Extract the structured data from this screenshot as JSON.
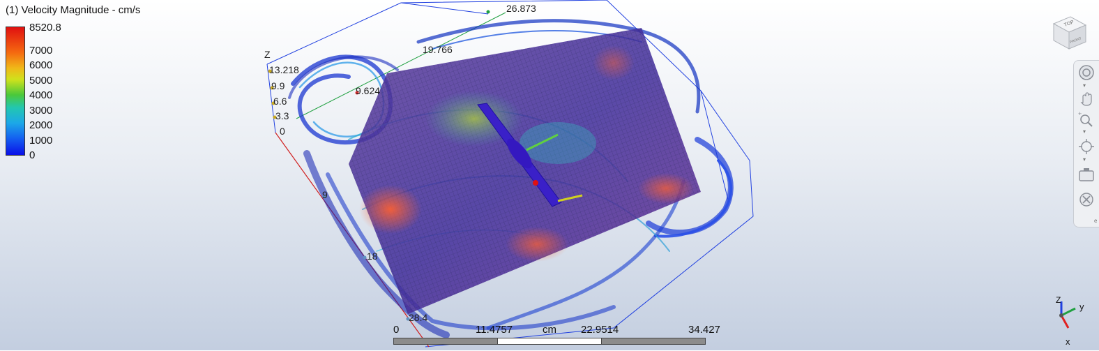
{
  "legend": {
    "title": "(1) Velocity Magnitude - cm/s",
    "max": "8520.8",
    "ticks": [
      "7000",
      "6000",
      "5000",
      "4000",
      "3000",
      "2000",
      "1000",
      "0"
    ],
    "colors": [
      "#e01010",
      "#f56a10",
      "#f0b818",
      "#cfe21c",
      "#4ac83a",
      "#22c7b0",
      "#1ca8e8",
      "#1460f0",
      "#0a10e8"
    ]
  },
  "view": {
    "axis_labels": {
      "z_axis": "Z",
      "z_values": [
        "13.218",
        "9.9",
        "6.6",
        "3.3",
        "0"
      ],
      "top_value": "26.873",
      "mid_value": "19.766",
      "inner_value": "9.624",
      "left_values": [
        "9",
        "18",
        "28.4"
      ]
    }
  },
  "viewcube": {
    "face_label": "TOP",
    "sub_label": "FRONT"
  },
  "toolbar": {
    "icons": [
      "orbit-icon",
      "pan-icon",
      "zoom-icon",
      "fit-icon",
      "camera-icon",
      "section-icon"
    ]
  },
  "scale": {
    "labels": [
      "0",
      "11.4757",
      "cm",
      "22.9514",
      "34.427"
    ]
  },
  "triad": {
    "z": "Z",
    "y": "y",
    "x": "x"
  }
}
